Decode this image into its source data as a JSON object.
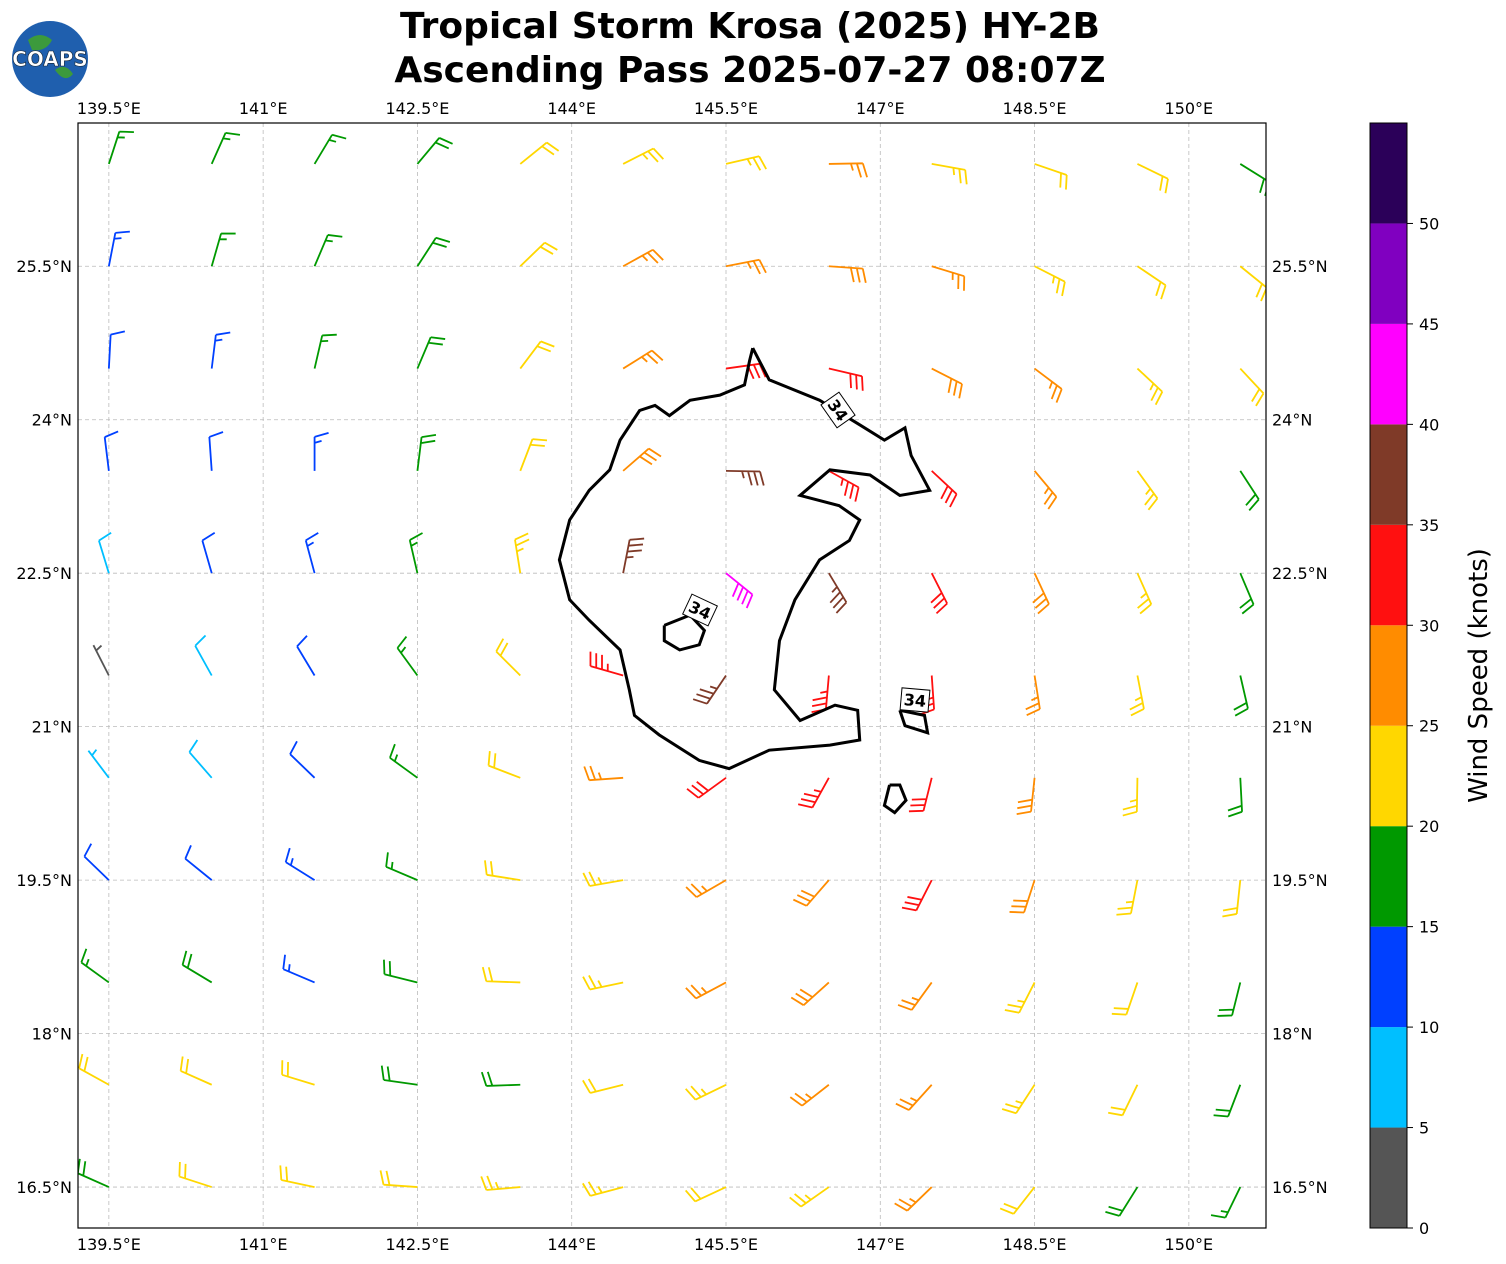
{
  "title": [
    "Tropical Storm Krosa (2025) HY-2B",
    "Ascending Pass 2025-07-27 08:07Z"
  ],
  "logo": "COAPS",
  "map": {
    "xlim": [
      139.2,
      150.75
    ],
    "ylim": [
      16.1,
      26.9
    ],
    "grid": true,
    "xticks": [
      {
        "value": 139.5,
        "label": "139.5°E"
      },
      {
        "value": 141,
        "label": "141°E"
      },
      {
        "value": 142.5,
        "label": "142.5°E"
      },
      {
        "value": 144,
        "label": "144°E"
      },
      {
        "value": 145.5,
        "label": "145.5°E"
      },
      {
        "value": 147,
        "label": "147°E"
      },
      {
        "value": 148.5,
        "label": "148.5°E"
      },
      {
        "value": 150,
        "label": "150°E"
      }
    ],
    "yticks": [
      {
        "value": 16.5,
        "label": "16.5°N"
      },
      {
        "value": 18,
        "label": "18°N"
      },
      {
        "value": 19.5,
        "label": "19.5°N"
      },
      {
        "value": 21,
        "label": "21°N"
      },
      {
        "value": 22.5,
        "label": "22.5°N"
      },
      {
        "value": 24,
        "label": "24°N"
      },
      {
        "value": 25.5,
        "label": "25.5°N"
      }
    ],
    "wind": {
      "lons": [
        139.5,
        140.5,
        141.5,
        142.5,
        143.5,
        144.5,
        145.5,
        146.5,
        147.5,
        148.5,
        149.5,
        150.5
      ],
      "lats": [
        26.5,
        25.5,
        24.5,
        23.5,
        22.5,
        21.5,
        20.5,
        19.5,
        18.5,
        17.5,
        16.5
      ],
      "speed": [
        [
          17,
          17,
          17,
          18,
          21,
          23,
          24,
          26,
          23,
          22,
          20,
          18
        ],
        [
          13,
          16,
          17,
          18,
          22,
          25,
          27,
          28,
          27,
          24,
          22,
          21
        ],
        [
          12,
          13,
          16,
          18,
          22,
          26,
          31,
          32,
          29,
          25,
          23,
          21
        ],
        [
          12,
          12,
          14,
          18,
          22,
          29,
          36,
          34,
          31,
          27,
          23,
          19
        ],
        [
          8,
          11,
          13,
          17,
          23,
          37,
          42,
          36,
          32,
          28,
          23,
          19
        ],
        [
          4,
          8,
          12,
          17,
          22,
          33,
          37,
          33,
          31,
          27,
          23,
          19
        ],
        [
          7,
          9,
          12,
          17,
          21,
          27,
          31,
          33,
          32,
          28,
          24,
          18
        ],
        [
          11,
          11,
          13,
          17,
          22,
          24,
          27,
          29,
          31,
          28,
          24,
          21
        ],
        [
          16,
          18,
          13,
          18,
          21,
          23,
          26,
          28,
          27,
          24,
          22,
          18
        ],
        [
          21,
          22,
          21,
          18,
          19,
          22,
          24,
          26,
          26,
          24,
          21,
          19
        ],
        [
          18,
          21,
          22,
          21,
          23,
          23,
          22,
          24,
          26,
          22,
          18,
          17
        ]
      ],
      "direction": [
        [
          18,
          24,
          31,
          40,
          51,
          63,
          77,
          89,
          100,
          109,
          116,
          122
        ],
        [
          11,
          16,
          23,
          33,
          46,
          61,
          79,
          94,
          107,
          117,
          124,
          129
        ],
        [
          3,
          7,
          13,
          23,
          37,
          58,
          82,
          103,
          117,
          127,
          133,
          137
        ],
        [
          353,
          356,
          0,
          7,
          21,
          49,
          91,
          119,
          133,
          140,
          144,
          147
        ],
        [
          343,
          344,
          345,
          347,
          351,
          11,
          129,
          149,
          153,
          155,
          156,
          157
        ],
        [
          333,
          331,
          329,
          324,
          315,
          286,
          214,
          185,
          176,
          171,
          169,
          167
        ],
        [
          323,
          319,
          314,
          306,
          291,
          266,
          234,
          209,
          194,
          186,
          181,
          177
        ],
        [
          314,
          309,
          302,
          293,
          279,
          260,
          240,
          221,
          207,
          198,
          191,
          186
        ],
        [
          306,
          301,
          293,
          284,
          272,
          258,
          242,
          228,
          216,
          207,
          199,
          194
        ],
        [
          299,
          294,
          287,
          278,
          268,
          256,
          244,
          232,
          222,
          213,
          206,
          201
        ],
        [
          294,
          288,
          282,
          274,
          265,
          255,
          245,
          235,
          226,
          218,
          212,
          206
        ]
      ]
    },
    "contour": {
      "level": 34,
      "color": "#000000",
      "lines": [
        [
          [
            145.76,
            24.7
          ],
          [
            145.92,
            24.39
          ],
          [
            146.41,
            24.19
          ],
          [
            146.8,
            23.95
          ],
          [
            147.04,
            23.8
          ],
          [
            147.24,
            23.92
          ],
          [
            147.3,
            23.65
          ],
          [
            147.48,
            23.31
          ],
          [
            147.19,
            23.26
          ],
          [
            146.9,
            23.46
          ],
          [
            146.51,
            23.51
          ],
          [
            146.22,
            23.26
          ],
          [
            146.6,
            23.16
          ],
          [
            146.8,
            23.02
          ],
          [
            146.7,
            22.82
          ],
          [
            146.41,
            22.63
          ],
          [
            146.17,
            22.24
          ],
          [
            146.02,
            21.84
          ],
          [
            145.97,
            21.36
          ],
          [
            146.22,
            21.06
          ],
          [
            146.56,
            21.21
          ],
          [
            146.78,
            21.16
          ],
          [
            146.8,
            20.87
          ],
          [
            146.51,
            20.82
          ],
          [
            145.92,
            20.77
          ],
          [
            145.53,
            20.59
          ],
          [
            145.24,
            20.67
          ],
          [
            144.85,
            20.92
          ],
          [
            144.61,
            21.11
          ],
          [
            144.56,
            21.36
          ],
          [
            144.47,
            21.75
          ],
          [
            144.17,
            22.04
          ],
          [
            143.98,
            22.24
          ],
          [
            143.88,
            22.63
          ],
          [
            143.98,
            23.02
          ],
          [
            144.17,
            23.31
          ],
          [
            144.37,
            23.51
          ],
          [
            144.47,
            23.8
          ],
          [
            144.66,
            24.09
          ],
          [
            144.81,
            24.14
          ],
          [
            144.95,
            24.04
          ],
          [
            145.15,
            24.19
          ],
          [
            145.44,
            24.24
          ],
          [
            145.68,
            24.34
          ],
          [
            145.73,
            24.58
          ],
          [
            145.76,
            24.7
          ]
        ],
        [
          [
            144.9,
            21.99
          ],
          [
            145.15,
            22.09
          ],
          [
            145.29,
            21.94
          ],
          [
            145.24,
            21.8
          ],
          [
            145.05,
            21.75
          ],
          [
            144.9,
            21.84
          ],
          [
            144.9,
            21.99
          ]
        ],
        [
          [
            147.19,
            21.16
          ],
          [
            147.43,
            21.11
          ],
          [
            147.46,
            20.94
          ],
          [
            147.24,
            21.01
          ],
          [
            147.19,
            21.16
          ]
        ],
        [
          [
            147.09,
            20.43
          ],
          [
            147.19,
            20.43
          ],
          [
            147.25,
            20.28
          ],
          [
            147.14,
            20.16
          ],
          [
            147.04,
            20.23
          ],
          [
            147.09,
            20.43
          ]
        ]
      ]
    }
  },
  "colorbar": {
    "bounds": [
      0,
      5,
      10,
      15,
      20,
      25,
      30,
      35,
      40,
      45,
      50,
      55
    ],
    "colors": [
      "#555555",
      "#00bfff",
      "#0040ff",
      "#009900",
      "#ffd700",
      "#ff8c00",
      "#ff1010",
      "#7f3a28",
      "#ff00ff",
      "#8000c0",
      "#2b0059"
    ],
    "ticks": [
      0,
      5,
      10,
      15,
      20,
      25,
      30,
      35,
      40,
      45,
      50
    ],
    "label": "Wind Speed (knots)"
  }
}
